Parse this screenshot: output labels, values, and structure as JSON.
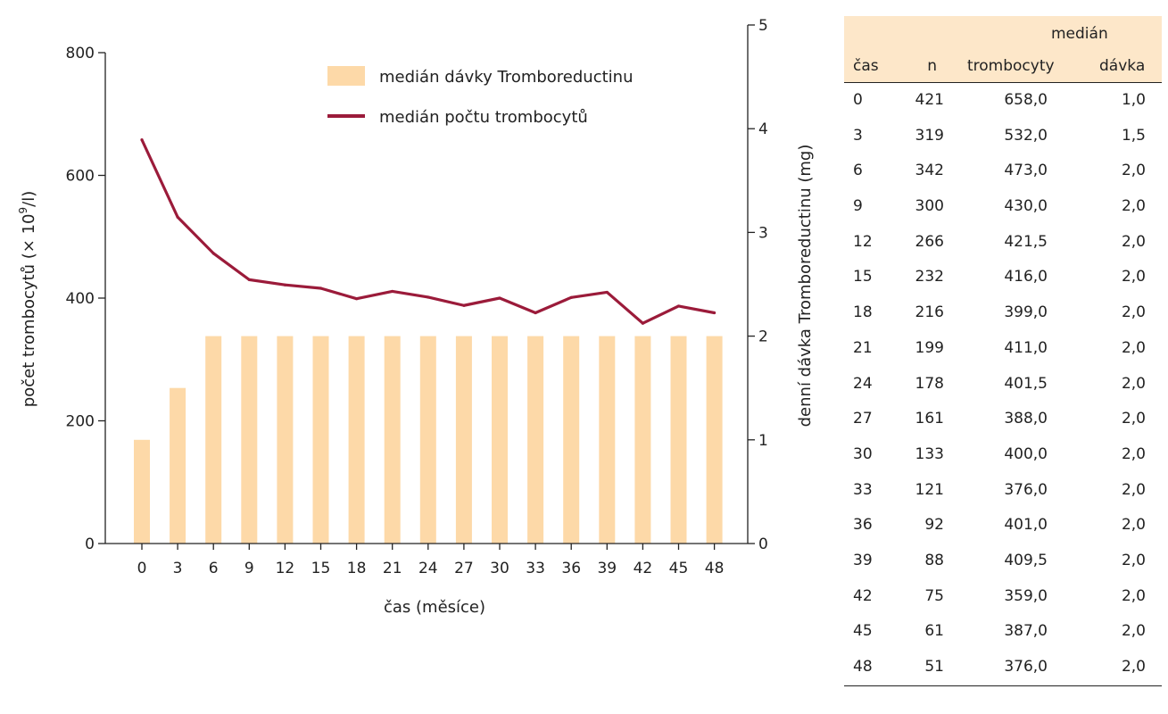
{
  "chart_data": {
    "type": "bar",
    "categories": [
      "0",
      "3",
      "6",
      "9",
      "12",
      "15",
      "18",
      "21",
      "24",
      "27",
      "30",
      "33",
      "36",
      "39",
      "42",
      "45",
      "48"
    ],
    "series": [
      {
        "name": "medián dávky Tromboreductinu",
        "type": "bar",
        "axis": "right",
        "values": [
          1.0,
          1.5,
          2.0,
          2.0,
          2.0,
          2.0,
          2.0,
          2.0,
          2.0,
          2.0,
          2.0,
          2.0,
          2.0,
          2.0,
          2.0,
          2.0,
          2.0
        ]
      },
      {
        "name": "medián počtu trombocytů",
        "type": "line",
        "axis": "left",
        "values": [
          658.0,
          532.0,
          473.0,
          430.0,
          421.5,
          416.0,
          399.0,
          411.0,
          401.5,
          388.0,
          400.0,
          376.0,
          401.0,
          409.5,
          359.0,
          387.0,
          376.0
        ]
      }
    ],
    "xlabel": "čas (měsíce)",
    "ylabel": "počet trombocytů (× 10",
    "ylabel_sup": "9",
    "ylabel_end": "/l)",
    "y2label": "denní dávka Tromboreductinu (mg)",
    "ylim": [
      0,
      800
    ],
    "yticks": [
      "0",
      "200",
      "400",
      "600",
      "800"
    ],
    "y2lim": [
      0,
      5
    ],
    "y2ticks": [
      "0",
      "1",
      "2",
      "3",
      "4",
      "5"
    ],
    "legend": "top-right",
    "grid": false,
    "colors": {
      "bar": "#fdd9a8",
      "line": "#9b1b3a"
    }
  },
  "table": {
    "header_group": "medián",
    "columns": [
      "čas",
      "n",
      "trombocyty",
      "dávka"
    ],
    "rows": [
      [
        "0",
        "421",
        "658,0",
        "1,0"
      ],
      [
        "3",
        "319",
        "532,0",
        "1,5"
      ],
      [
        "6",
        "342",
        "473,0",
        "2,0"
      ],
      [
        "9",
        "300",
        "430,0",
        "2,0"
      ],
      [
        "12",
        "266",
        "421,5",
        "2,0"
      ],
      [
        "15",
        "232",
        "416,0",
        "2,0"
      ],
      [
        "18",
        "216",
        "399,0",
        "2,0"
      ],
      [
        "21",
        "199",
        "411,0",
        "2,0"
      ],
      [
        "24",
        "178",
        "401,5",
        "2,0"
      ],
      [
        "27",
        "161",
        "388,0",
        "2,0"
      ],
      [
        "30",
        "133",
        "400,0",
        "2,0"
      ],
      [
        "33",
        "121",
        "376,0",
        "2,0"
      ],
      [
        "36",
        "92",
        "401,0",
        "2,0"
      ],
      [
        "39",
        "88",
        "409,5",
        "2,0"
      ],
      [
        "42",
        "75",
        "359,0",
        "2,0"
      ],
      [
        "45",
        "61",
        "387,0",
        "2,0"
      ],
      [
        "48",
        "51",
        "376,0",
        "2,0"
      ]
    ]
  }
}
